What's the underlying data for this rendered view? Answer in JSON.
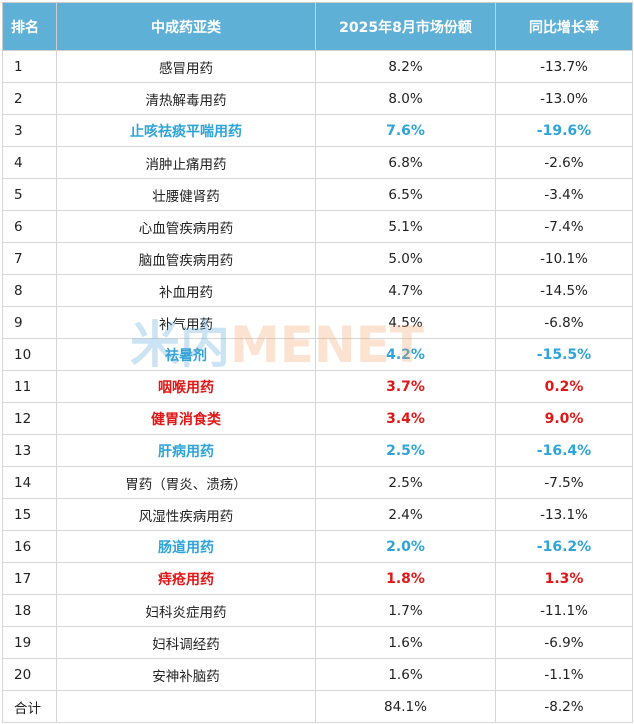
{
  "table": {
    "headers": [
      "排名",
      "中成药亚类",
      "2025年8月市场份额",
      "同比增长率"
    ],
    "rows": [
      {
        "rank": "1",
        "category": "感冒用药",
        "share": "8.2%",
        "growth": "-13.7%",
        "highlight": "none"
      },
      {
        "rank": "2",
        "category": "清热解毒用药",
        "share": "8.0%",
        "growth": "-13.0%",
        "highlight": "none"
      },
      {
        "rank": "3",
        "category": "止咳祛痰平喘用药",
        "share": "7.6%",
        "growth": "-19.6%",
        "highlight": "blue"
      },
      {
        "rank": "4",
        "category": "消肿止痛用药",
        "share": "6.8%",
        "growth": "-2.6%",
        "highlight": "none"
      },
      {
        "rank": "5",
        "category": "壮腰健肾药",
        "share": "6.5%",
        "growth": "-3.4%",
        "highlight": "none"
      },
      {
        "rank": "6",
        "category": "心血管疾病用药",
        "share": "5.1%",
        "growth": "-7.4%",
        "highlight": "none"
      },
      {
        "rank": "7",
        "category": "脑血管疾病用药",
        "share": "5.0%",
        "growth": "-10.1%",
        "highlight": "none"
      },
      {
        "rank": "8",
        "category": "补血用药",
        "share": "4.7%",
        "growth": "-14.5%",
        "highlight": "none"
      },
      {
        "rank": "9",
        "category": "补气用药",
        "share": "4.5%",
        "growth": "-6.8%",
        "highlight": "none"
      },
      {
        "rank": "10",
        "category": "祛暑剂",
        "share": "4.2%",
        "growth": "-15.5%",
        "highlight": "blue"
      },
      {
        "rank": "11",
        "category": "咽喉用药",
        "share": "3.7%",
        "growth": "0.2%",
        "highlight": "red"
      },
      {
        "rank": "12",
        "category": "健胃消食类",
        "share": "3.4%",
        "growth": "9.0%",
        "highlight": "red"
      },
      {
        "rank": "13",
        "category": "肝病用药",
        "share": "2.5%",
        "growth": "-16.4%",
        "highlight": "blue"
      },
      {
        "rank": "14",
        "category": "胃药（胃炎、溃疡）",
        "share": "2.5%",
        "growth": "-7.5%",
        "highlight": "none"
      },
      {
        "rank": "15",
        "category": "风湿性疾病用药",
        "share": "2.4%",
        "growth": "-13.1%",
        "highlight": "none"
      },
      {
        "rank": "16",
        "category": "肠道用药",
        "share": "2.0%",
        "growth": "-16.2%",
        "highlight": "blue"
      },
      {
        "rank": "17",
        "category": "痔疮用药",
        "share": "1.8%",
        "growth": "1.3%",
        "highlight": "red"
      },
      {
        "rank": "18",
        "category": "妇科炎症用药",
        "share": "1.7%",
        "growth": "-11.1%",
        "highlight": "none"
      },
      {
        "rank": "19",
        "category": "妇科调经药",
        "share": "1.6%",
        "growth": "-6.9%",
        "highlight": "none"
      },
      {
        "rank": "20",
        "category": "安神补脑药",
        "share": "1.6%",
        "growth": "-1.1%",
        "highlight": "none"
      }
    ],
    "total": {
      "label": "合计",
      "share": "84.1%",
      "growth": "-8.2%"
    }
  },
  "watermark": {
    "text": "米内MENET",
    "color_blue": "#5aa6d8",
    "color_orange": "#f5a36b"
  },
  "colors": {
    "header_bg": "#5fb0d6",
    "highlight_blue": "#2ea4d8",
    "highlight_red": "#e01818"
  }
}
